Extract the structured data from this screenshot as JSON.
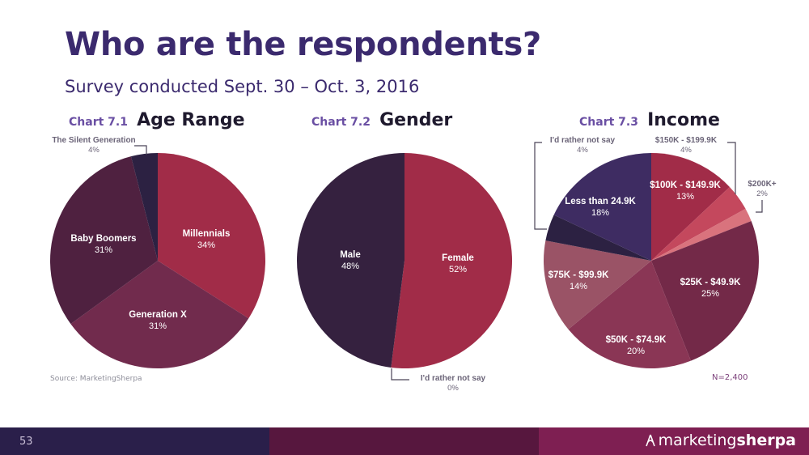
{
  "title": "Who are the respondents?",
  "subtitle": "Survey conducted Sept. 30 – Oct. 3, 2016",
  "source": "Source: MarketingSherpa",
  "n_label": "N=2,400",
  "page_number": "53",
  "brand": {
    "part1": "marketing",
    "part2": "sherpa"
  },
  "chart_data": [
    {
      "type": "pie",
      "chart_label": "Chart 7.1",
      "title": "Age Range",
      "start_angle": 0,
      "slices": [
        {
          "label": "Millennials",
          "value": 34,
          "value_label": "34%",
          "color": "#a12c48"
        },
        {
          "label": "Generation X",
          "value": 31,
          "value_label": "31%",
          "color": "#712b4d"
        },
        {
          "label": "Baby Boomers",
          "value": 31,
          "value_label": "31%",
          "color": "#4f2140"
        },
        {
          "label": "The Silent Generation",
          "value": 4,
          "value_label": "4%",
          "color": "#2c2142"
        }
      ]
    },
    {
      "type": "pie",
      "chart_label": "Chart 7.2",
      "title": "Gender",
      "start_angle": 0,
      "slices": [
        {
          "label": "Female",
          "value": 52,
          "value_label": "52%",
          "color": "#a12c48"
        },
        {
          "label": "I'd rather not say",
          "value": 0,
          "value_label": "0%",
          "color": "#7a2a50"
        },
        {
          "label": "Male",
          "value": 48,
          "value_label": "48%",
          "color": "#35213f"
        }
      ]
    },
    {
      "type": "pie",
      "chart_label": "Chart 7.3",
      "title": "Income",
      "start_angle": 0,
      "slices": [
        {
          "label": "$100K - $149.9K",
          "value": 13,
          "value_label": "13%",
          "color": "#a12c48"
        },
        {
          "label": "$150K - $199.9K",
          "value": 4,
          "value_label": "4%",
          "color": "#c4485d"
        },
        {
          "label": "$200K+",
          "value": 2,
          "value_label": "2%",
          "color": "#d9737d"
        },
        {
          "label": "$25K - $49.9K",
          "value": 25,
          "value_label": "25%",
          "color": "#732948"
        },
        {
          "label": "$50K - $74.9K",
          "value": 20,
          "value_label": "20%",
          "color": "#8a3655"
        },
        {
          "label": "$75K - $99.9K",
          "value": 14,
          "value_label": "14%",
          "color": "#9a5366"
        },
        {
          "label": "I'd rather not say",
          "value": 4,
          "value_label": "4%",
          "color": "#2c2142"
        },
        {
          "label": "Less than 24.9K",
          "value": 18,
          "value_label": "18%",
          "color": "#3e2c62"
        }
      ]
    }
  ]
}
